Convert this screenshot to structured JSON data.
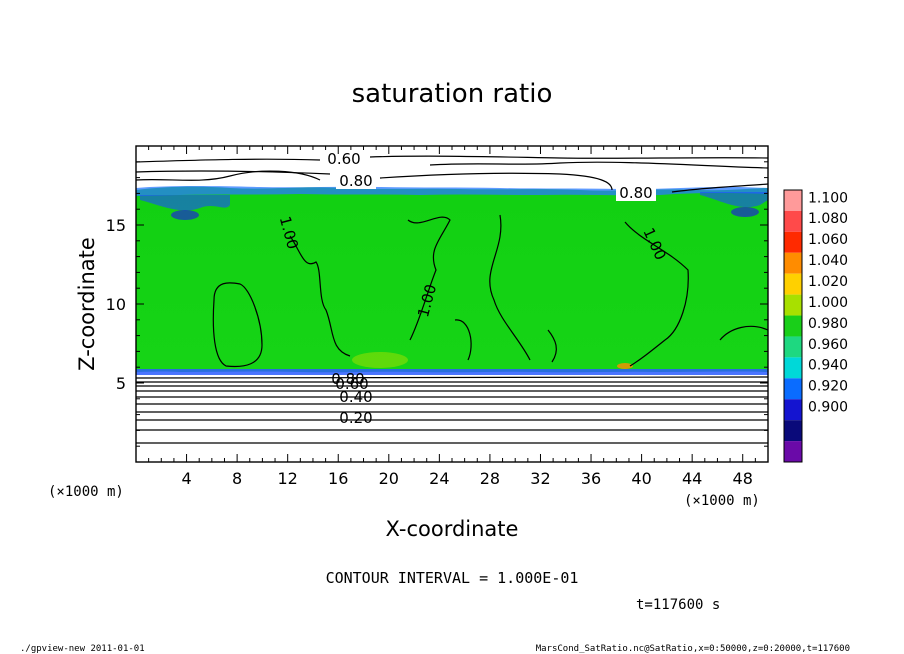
{
  "chart_data": {
    "type": "contour",
    "title": "saturation ratio",
    "xlabel": "X-coordinate",
    "ylabel": "Z-coordinate",
    "x_unit": "(×1000 m)",
    "y_unit": "(×1000 m)",
    "xlim": [
      0,
      50
    ],
    "ylim": [
      0,
      20
    ],
    "x_ticks": [
      "4",
      "8",
      "12",
      "16",
      "20",
      "24",
      "28",
      "32",
      "36",
      "40",
      "44",
      "48"
    ],
    "x_tick_values": [
      4,
      8,
      12,
      16,
      20,
      24,
      28,
      32,
      36,
      40,
      44,
      48
    ],
    "y_ticks": [
      "5",
      "10",
      "15"
    ],
    "y_tick_values": [
      5,
      10,
      15
    ],
    "contour_interval_text": "CONTOUR INTERVAL = 1.000E-01",
    "time_text": "t=117600 s",
    "contour_labels": [
      "0.60",
      "0.80",
      "0.80",
      "1.00",
      "1.00",
      "1.00",
      "0.80",
      "0.60",
      "0.40",
      "0.20"
    ],
    "colorbar": {
      "levels": [
        "1.100",
        "1.080",
        "1.060",
        "1.040",
        "1.020",
        "1.000",
        "0.980",
        "0.960",
        "0.940",
        "0.920",
        "0.900"
      ],
      "colors": [
        "#ff9a9a",
        "#ff4a4a",
        "#ff2a00",
        "#ff8c00",
        "#ffd000",
        "#a8e000",
        "#19cf19",
        "#1ed880",
        "#00d8d8",
        "#0a6cff",
        "#1414d0",
        "#0a0a7a",
        "#6a0aa8"
      ]
    }
  },
  "footer": {
    "left": "./gpview-new   2011-01-01",
    "right": "MarsCond_SatRatio.nc@SatRatio,x=0:50000,z=0:20000,t=117600"
  }
}
